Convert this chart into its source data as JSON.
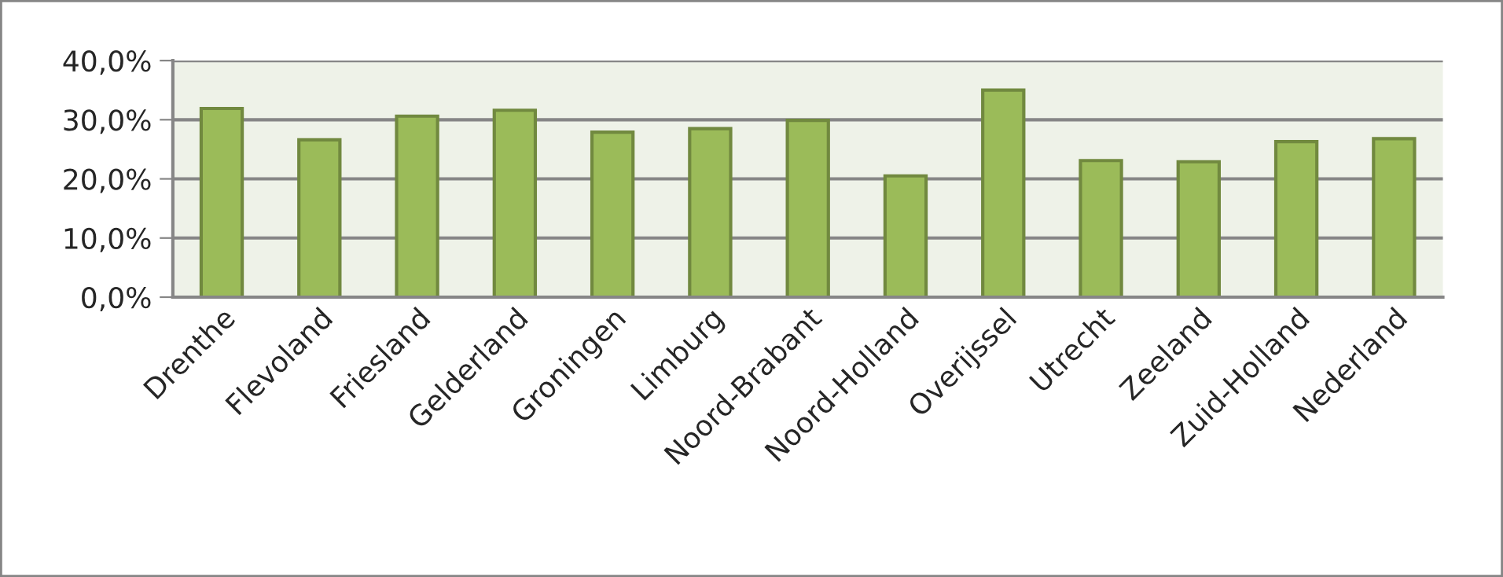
{
  "chart_data": {
    "type": "bar",
    "categories": [
      "Drenthe",
      "Flevoland",
      "Friesland",
      "Gelderland",
      "Groningen",
      "Limburg",
      "Noord-Brabant",
      "Noord-Holland",
      "Overijssel",
      "Utrecht",
      "Zeeland",
      "Zuid-Holland",
      "Nederland"
    ],
    "values": [
      31.9,
      26.6,
      30.6,
      31.6,
      27.9,
      28.5,
      29.9,
      20.5,
      35.0,
      23.1,
      22.9,
      26.3,
      26.8
    ],
    "color": "#9bbb59",
    "ylim": [
      0,
      40
    ],
    "yticks": [
      {
        "value": 0,
        "label": "0,0%"
      },
      {
        "value": 10,
        "label": "10,0%"
      },
      {
        "value": 20,
        "label": "20,0%"
      },
      {
        "value": 30,
        "label": "30,0%"
      },
      {
        "value": 40,
        "label": "40,0%"
      }
    ],
    "grid": "y",
    "legend": false
  }
}
